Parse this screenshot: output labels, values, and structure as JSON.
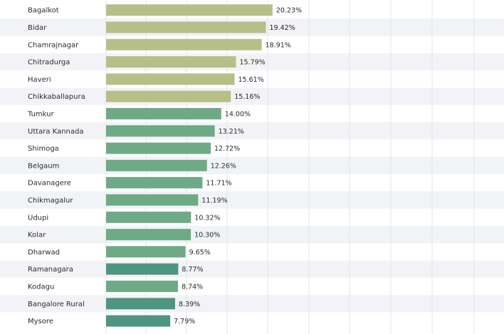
{
  "chart_data": {
    "type": "bar",
    "orientation": "horizontal",
    "categories": [
      "Bagalkot",
      "Bidar",
      "Chamrajnagar",
      "Chitradurga",
      "Haveri",
      "Chikkaballapura",
      "Tumkur",
      "Uttara Kannada",
      "Shimoga",
      "Belgaum",
      "Davanagere",
      "Chikmagalur",
      "Udupi",
      "Kolar",
      "Dharwad",
      "Ramanagara",
      "Kodagu",
      "Bangalore Rural",
      "Mysore"
    ],
    "values": [
      20.23,
      19.42,
      18.91,
      15.79,
      15.61,
      15.16,
      14.0,
      13.21,
      12.72,
      12.26,
      11.71,
      11.19,
      10.32,
      10.3,
      9.65,
      8.77,
      8.74,
      8.39,
      7.79
    ],
    "value_labels": [
      "20.23%",
      "19.42%",
      "18.91%",
      "15.79%",
      "15.61%",
      "15.16%",
      "14.00%",
      "13.21%",
      "12.72%",
      "12.26%",
      "11.71%",
      "11.19%",
      "10.32%",
      "10.30%",
      "9.65%",
      "8.77%",
      "8.74%",
      "8.39%",
      "7.79%"
    ],
    "bar_colors": [
      "#b6bf87",
      "#b6bf87",
      "#b6bf87",
      "#b6bf87",
      "#b6bf87",
      "#b6bf87",
      "#6faa86",
      "#6faa86",
      "#6faa86",
      "#6faa86",
      "#6faa86",
      "#6faa86",
      "#6faa86",
      "#6faa86",
      "#6faa86",
      "#4e9682",
      "#6faa86",
      "#4e9682",
      "#4e9682"
    ],
    "xlim": [
      0,
      48
    ],
    "grid": true,
    "title": "",
    "xlabel": "",
    "ylabel": ""
  }
}
